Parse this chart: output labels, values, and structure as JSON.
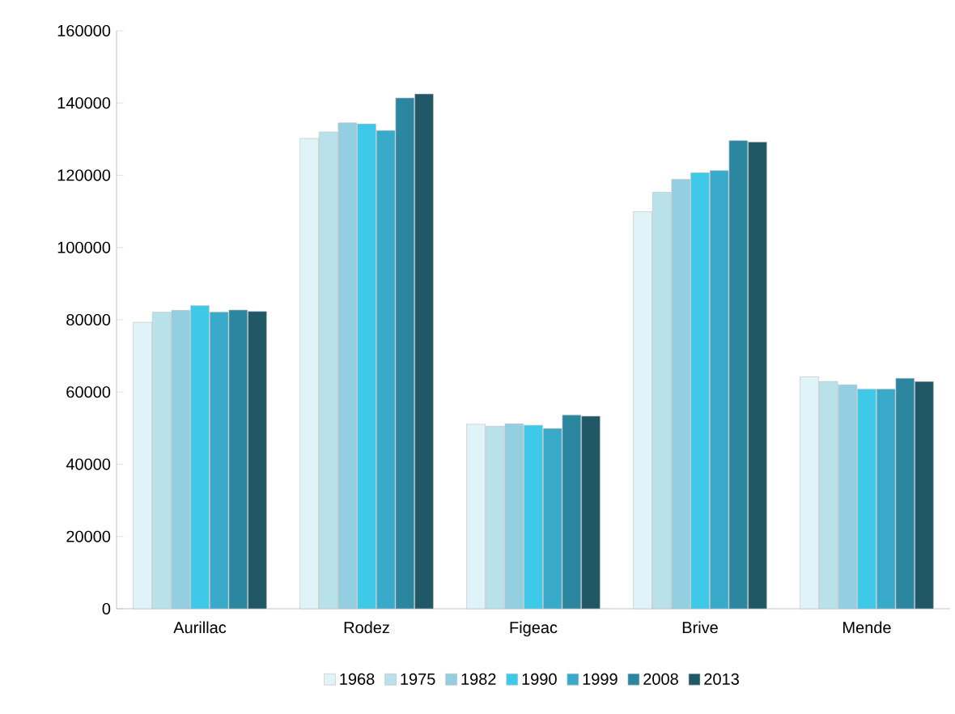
{
  "chart_data": {
    "type": "bar",
    "categories": [
      "Aurillac",
      "Rodez",
      "Figeac",
      "Brive",
      "Mende"
    ],
    "series": [
      {
        "name": "1968",
        "color": "#dff3f9",
        "values": [
          79300,
          130200,
          51100,
          109900,
          64200
        ]
      },
      {
        "name": "1975",
        "color": "#b9e1ea",
        "values": [
          82100,
          132000,
          50500,
          115300,
          62900
        ]
      },
      {
        "name": "1982",
        "color": "#93cfe0",
        "values": [
          82600,
          134500,
          51200,
          118900,
          62000
        ]
      },
      {
        "name": "1990",
        "color": "#3fc9e9",
        "values": [
          83900,
          134200,
          50800,
          120700,
          60800
        ]
      },
      {
        "name": "1999",
        "color": "#3aaacb",
        "values": [
          82100,
          132400,
          49900,
          121300,
          60800
        ]
      },
      {
        "name": "2008",
        "color": "#2b86a0",
        "values": [
          82700,
          141400,
          53600,
          129600,
          63800
        ]
      },
      {
        "name": "2013",
        "color": "#215867",
        "values": [
          82300,
          142500,
          53300,
          129200,
          62900
        ]
      }
    ],
    "ylim": [
      0,
      160000
    ],
    "yticks": [
      0,
      20000,
      40000,
      60000,
      80000,
      100000,
      120000,
      140000,
      160000
    ],
    "grid": false,
    "legend": "bottom"
  }
}
